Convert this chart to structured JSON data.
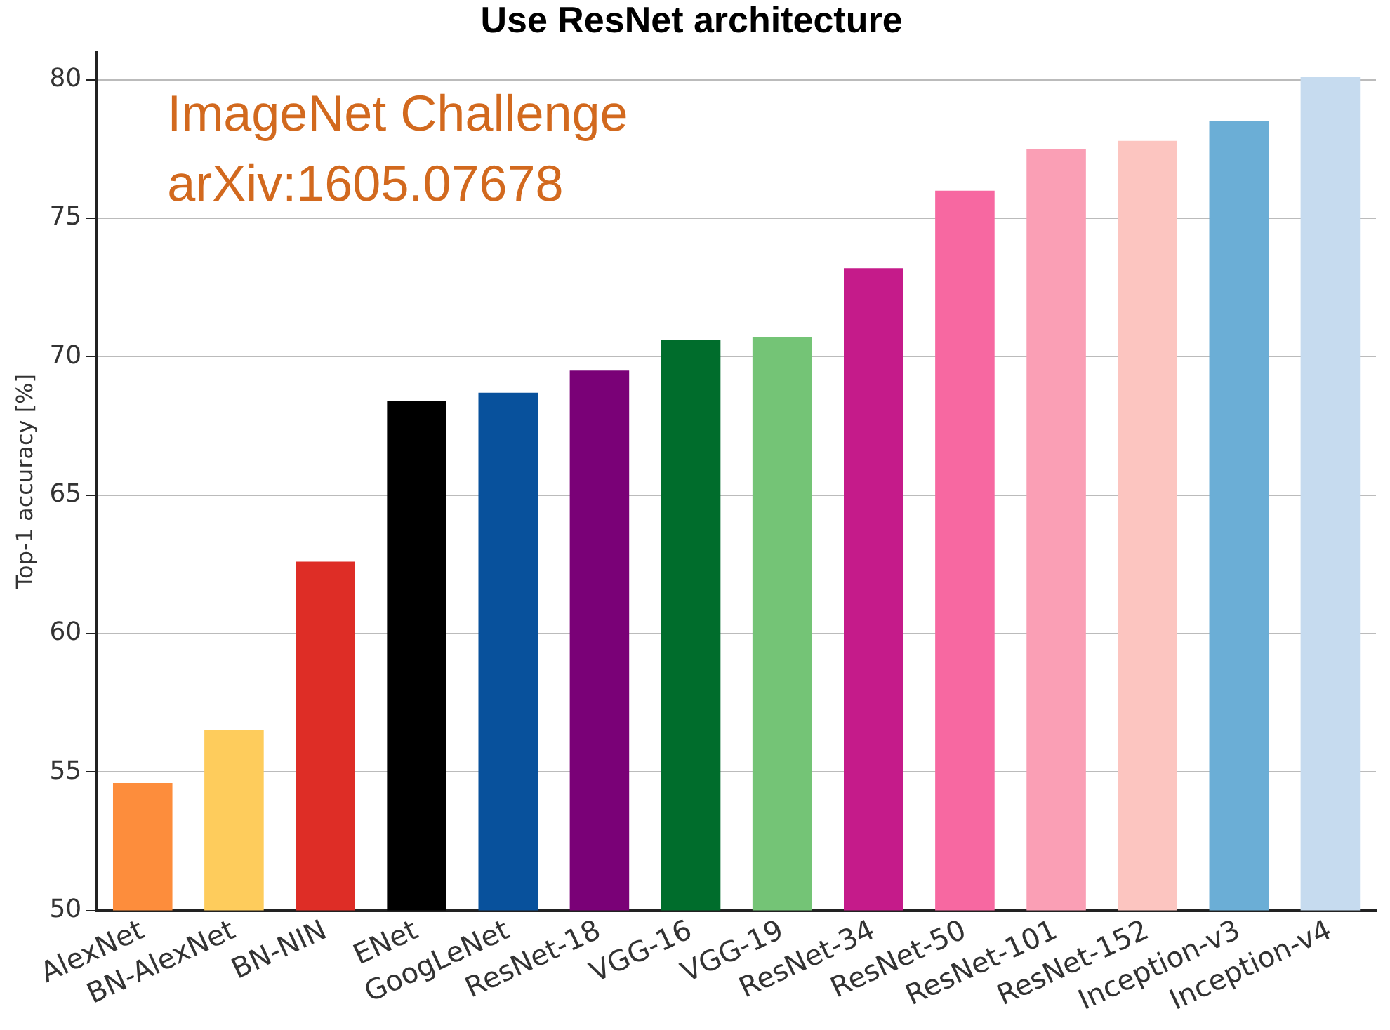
{
  "chart_data": {
    "type": "bar",
    "title": "Use ResNet architecture",
    "ylabel": "Top-1 accuracy [%]",
    "annotations": [
      "ImageNet Challenge",
      "arXiv:1605.07678"
    ],
    "categories": [
      "AlexNet",
      "BN-AlexNet",
      "BN-NIN",
      "ENet",
      "GoogLeNet",
      "ResNet-18",
      "VGG-16",
      "VGG-19",
      "ResNet-34",
      "ResNet-50",
      "ResNet-101",
      "ResNet-152",
      "Inception-v3",
      "Inception-v4"
    ],
    "values": [
      54.6,
      56.5,
      62.6,
      68.4,
      68.7,
      69.5,
      70.6,
      70.7,
      73.2,
      76.0,
      77.5,
      77.8,
      78.5,
      80.1
    ],
    "colors": [
      "#fd8d3c",
      "#fecc5c",
      "#de2d26",
      "#000000",
      "#08519c",
      "#7a0177",
      "#006d2c",
      "#74c476",
      "#c51b8a",
      "#f768a1",
      "#fa9fb5",
      "#fcc5c0",
      "#6baed6",
      "#c6dbef"
    ],
    "ylim": [
      50,
      81
    ],
    "yticks": [
      50,
      55,
      60,
      65,
      70,
      75,
      80
    ],
    "grid": "y",
    "legend": false
  }
}
